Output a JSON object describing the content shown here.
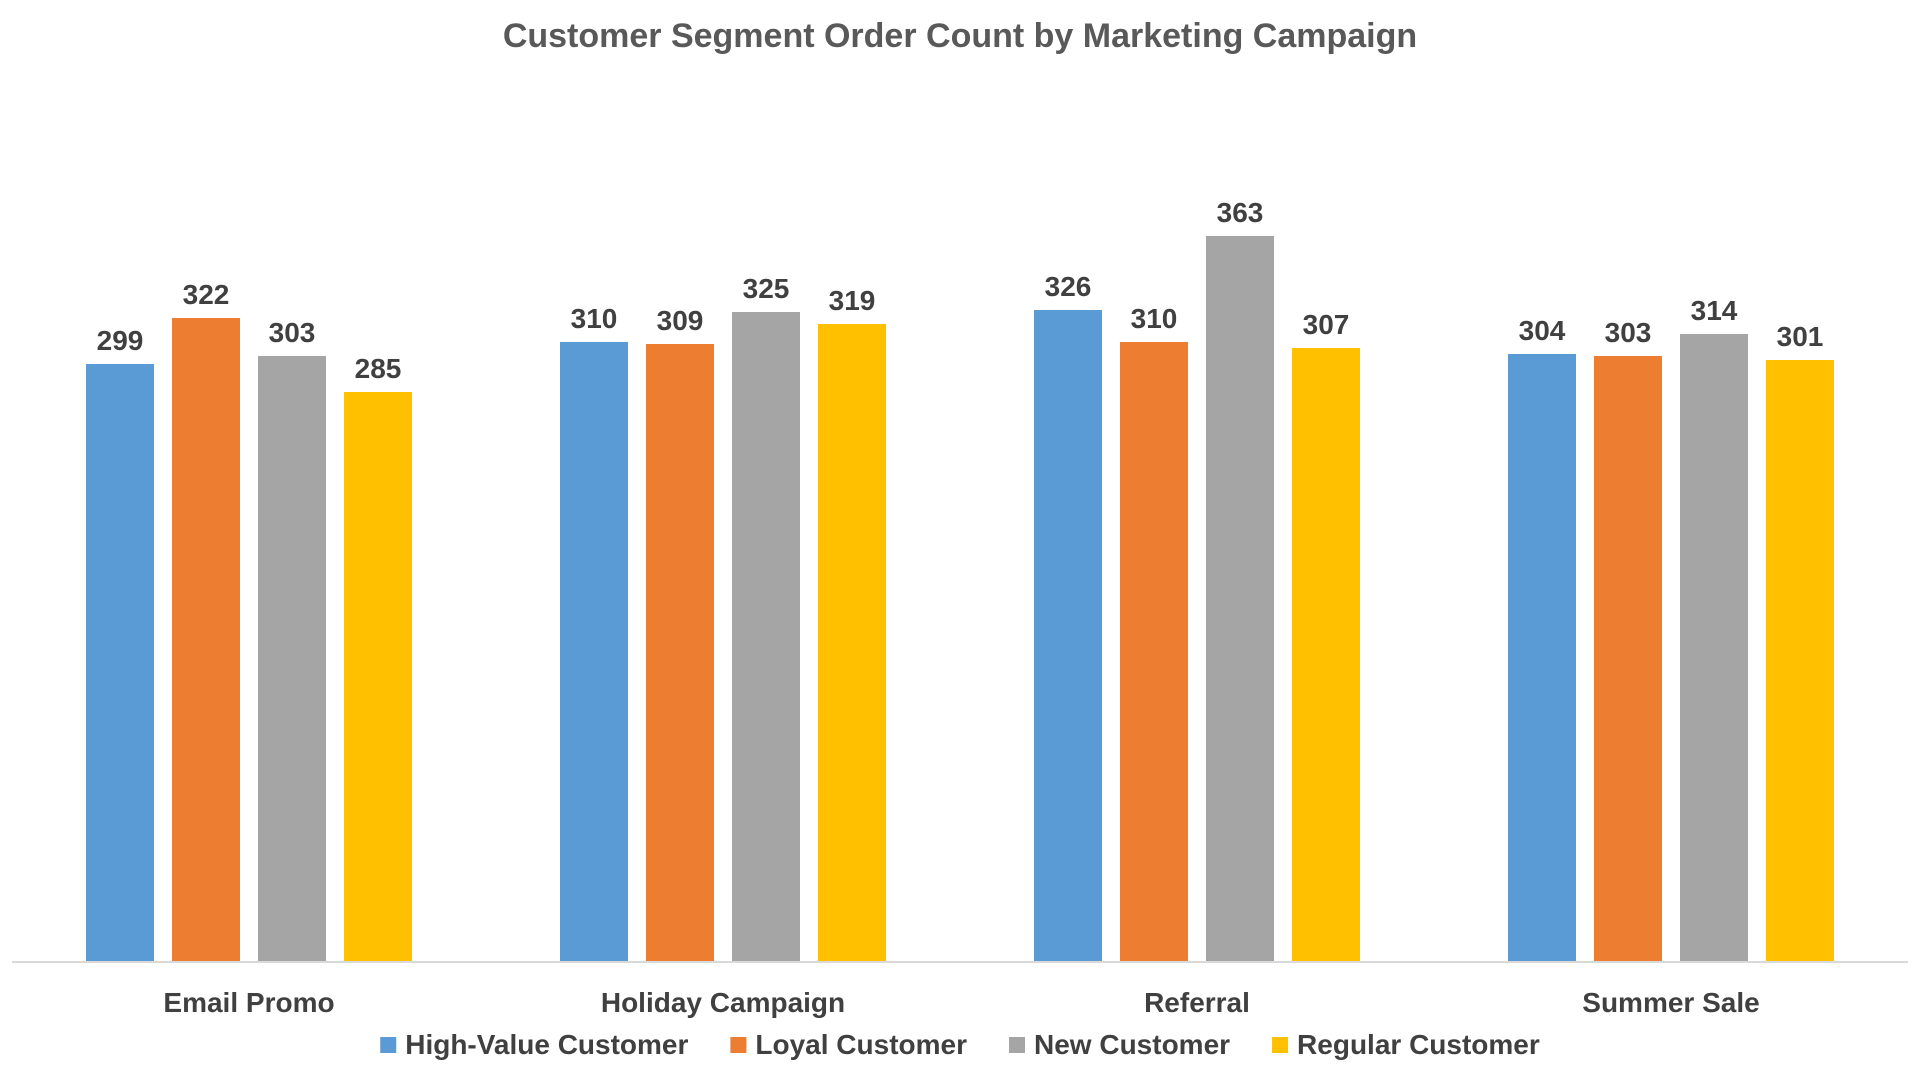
{
  "chart_data": {
    "type": "bar",
    "title": "Customer Segment Order Count by Marketing Campaign",
    "xlabel": "",
    "ylabel": "",
    "categories": [
      "Email Promo",
      "Holiday Campaign",
      "Referral",
      "Summer Sale"
    ],
    "series": [
      {
        "name": "High-Value Customer",
        "color": "#5B9BD5",
        "values": [
          299,
          310,
          326,
          304
        ]
      },
      {
        "name": "Loyal Customer",
        "color": "#ED7D31",
        "values": [
          322,
          309,
          310,
          303
        ]
      },
      {
        "name": "New Customer",
        "color": "#A5A5A5",
        "values": [
          303,
          325,
          363,
          314
        ]
      },
      {
        "name": "Regular Customer",
        "color": "#FFC000",
        "values": [
          285,
          319,
          307,
          301
        ]
      }
    ],
    "ylim": [
      0,
      400
    ],
    "grid": false,
    "legend_position": "bottom",
    "data_labels": true
  }
}
